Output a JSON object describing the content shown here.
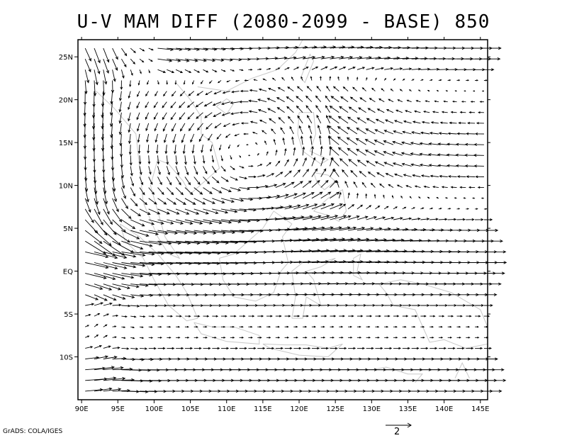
{
  "title": "U-V MAM DIFF (2080-2099 - BASE) 850",
  "credit": "GrADS: COLA/IGES",
  "reference_vector": {
    "label": "2",
    "magnitude": 2
  },
  "map": {
    "lon_range": [
      89.5,
      146
    ],
    "lat_range": [
      -15,
      27
    ],
    "x_ticks": [
      "90E",
      "95E",
      "100E",
      "105E",
      "110E",
      "115E",
      "120E",
      "125E",
      "130E",
      "135E",
      "140E",
      "145E"
    ],
    "x_tick_values": [
      90,
      95,
      100,
      105,
      110,
      115,
      120,
      125,
      130,
      135,
      140,
      145
    ],
    "y_ticks": [
      "10S",
      "5S",
      "EQ",
      "5N",
      "10N",
      "15N",
      "20N",
      "25N"
    ],
    "y_tick_values": [
      -10,
      -5,
      0,
      5,
      10,
      15,
      20,
      25
    ],
    "coastline_color": "#c8c8c8",
    "vector_color": "#000000"
  }
}
